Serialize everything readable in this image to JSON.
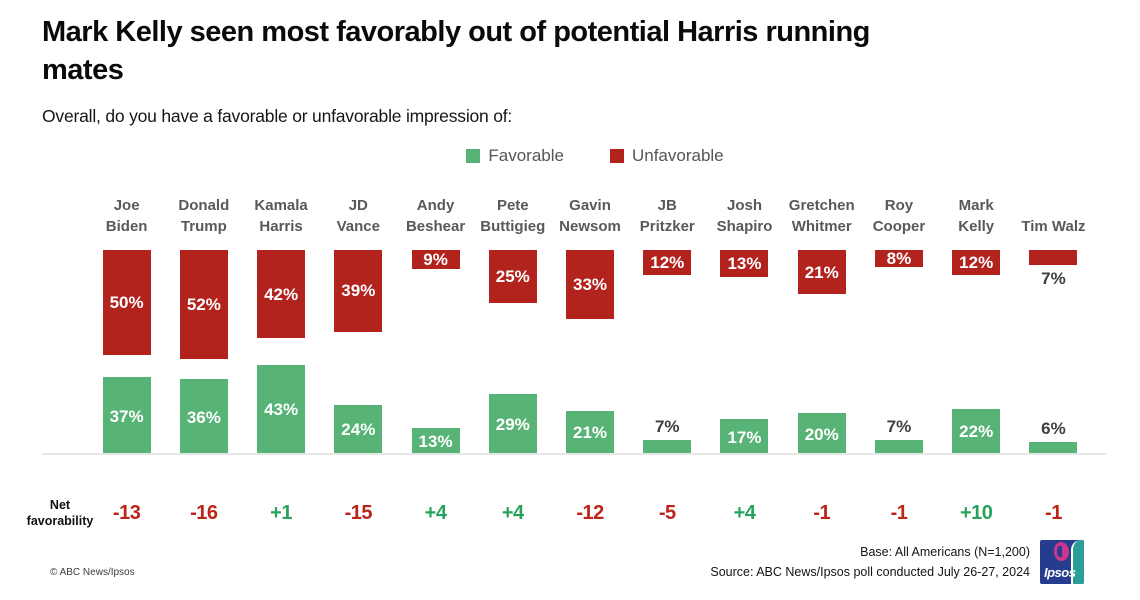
{
  "title_lines": [
    "Mark Kelly seen most favorably out of potential Harris running",
    "mates"
  ],
  "subtitle": "Overall, do you have a favorable or unfavorable impression of:",
  "legend": {
    "favorable": "Favorable",
    "unfavorable": "Unfavorable"
  },
  "net_label": "Net favorability",
  "colors": {
    "favorable": "#57b476",
    "unfavorable": "#b2231d",
    "net_positive": "#27a35e",
    "net_negative": "#bc2418",
    "name_gray": "#58595b"
  },
  "footer": {
    "copyright": "© ABC News/Ipsos",
    "base": "Base: All Americans (N=1,200)",
    "source": "Source: ABC News/Ipsos poll conducted July 26-27, 2024",
    "logo_text": "Ipsos"
  },
  "chart_data": {
    "type": "bar",
    "title": "Mark Kelly seen most favorably out of potential Harris running mates",
    "subtitle": "Overall, do you have a favorable or unfavorable impression of:",
    "categories": [
      "Joe Biden",
      "Donald Trump",
      "Kamala Harris",
      "JD Vance",
      "Andy Beshear",
      "Pete Buttigieg",
      "Gavin Newsom",
      "JB Pritzker",
      "Josh Shapiro",
      "Gretchen Whitmer",
      "Roy Cooper",
      "Mark Kelly",
      "Tim Walz"
    ],
    "name_lines": [
      [
        "Joe",
        "Biden"
      ],
      [
        "Donald",
        "Trump"
      ],
      [
        "Kamala",
        "Harris"
      ],
      [
        "JD",
        "Vance"
      ],
      [
        "Andy",
        "Beshear"
      ],
      [
        "Pete",
        "Buttigieg"
      ],
      [
        "Gavin",
        "Newsom"
      ],
      [
        "JB",
        "Pritzker"
      ],
      [
        "Josh",
        "Shapiro"
      ],
      [
        "Gretchen",
        "Whitmer"
      ],
      [
        "Roy",
        "Cooper"
      ],
      [
        "Mark",
        "Kelly"
      ],
      [
        "Tim Walz"
      ]
    ],
    "series": [
      {
        "name": "Favorable",
        "color": "#57b476",
        "values": [
          37,
          36,
          43,
          24,
          13,
          29,
          21,
          7,
          17,
          20,
          7,
          22,
          6
        ]
      },
      {
        "name": "Unfavorable",
        "color": "#b2231d",
        "values": [
          50,
          52,
          42,
          39,
          9,
          25,
          33,
          12,
          13,
          21,
          8,
          12,
          7
        ]
      }
    ],
    "net_favorability": [
      -13,
      -16,
      1,
      -15,
      4,
      4,
      -12,
      -5,
      4,
      -1,
      -1,
      10,
      -1
    ],
    "value_suffix": "%",
    "legend_position": "top-center",
    "grid": false,
    "axis": "none (baseline only)"
  }
}
